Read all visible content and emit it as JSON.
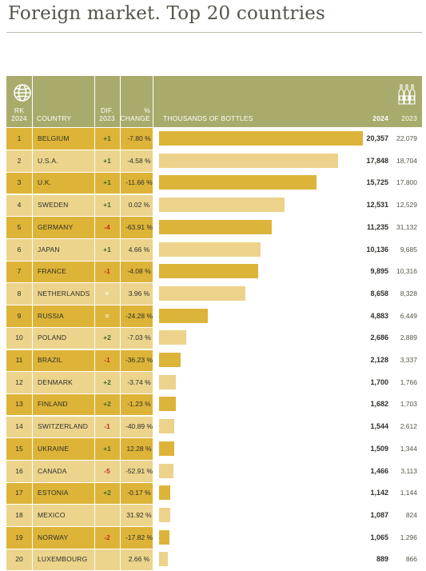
{
  "title": "Foreign market. Top 20 countries",
  "header": {
    "rk": "RK",
    "rk_year": "2024",
    "country": "COUNTRY",
    "dif": "DIF.",
    "dif_year": "2023",
    "pct_symbol": "%",
    "change": "CHANGE",
    "bottles": "THOUSANDS OF BOTTLES",
    "col_2024": "2024",
    "col_2023": "2023"
  },
  "icons": {
    "left": "globe-icon",
    "right": "wine-bottles-icon"
  },
  "colors": {
    "header_band": "#a9ab6c",
    "odd_fill": "#ddb437",
    "even_fill": "#ecd48c",
    "odd_bar": "#ddb43a",
    "even_bar": "#ecd28a",
    "dif_up": "#3a6a2a",
    "dif_down": "#c62828",
    "dif_same": "#ffffff"
  },
  "chart_data": {
    "type": "bar",
    "orientation": "horizontal",
    "title": "Foreign market. Top 20 countries",
    "xlabel": "THOUSANDS OF BOTTLES",
    "categories": [
      "BELGIUM",
      "U.S.A.",
      "U.K.",
      "SWEDEN",
      "GERMANY",
      "JAPAN",
      "FRANCE",
      "NETHERLANDS",
      "RUSSIA",
      "POLAND",
      "BRAZIL",
      "DENMARK",
      "FINLAND",
      "SWITZERLAND",
      "UKRAINE",
      "CANADA",
      "ESTONIA",
      "MEXICO",
      "NORWAY",
      "LUXEMBOURG"
    ],
    "rows": [
      {
        "rank": "1",
        "country": "BELGIUM",
        "dif": "+1",
        "change": "-7.80 %",
        "v2024": 20357,
        "v2024_label": "20,357",
        "v2023_label": "22,079"
      },
      {
        "rank": "2",
        "country": "U.S.A.",
        "dif": "+1",
        "change": "-4.58 %",
        "v2024": 17848,
        "v2024_label": "17,848",
        "v2023_label": "18,704"
      },
      {
        "rank": "3",
        "country": "U.K.",
        "dif": "+1",
        "change": "-11.66 %",
        "v2024": 15725,
        "v2024_label": "15,725",
        "v2023_label": "17,800"
      },
      {
        "rank": "4",
        "country": "SWEDEN",
        "dif": "+1",
        "change": "0.02 %",
        "v2024": 12531,
        "v2024_label": "12,531",
        "v2023_label": "12,529"
      },
      {
        "rank": "5",
        "country": "GERMANY",
        "dif": "-4",
        "change": "-63.91 %",
        "v2024": 11235,
        "v2024_label": "11,235",
        "v2023_label": "31,132"
      },
      {
        "rank": "6",
        "country": "JAPAN",
        "dif": "+1",
        "change": "4.66 %",
        "v2024": 10136,
        "v2024_label": "10,136",
        "v2023_label": "9,685"
      },
      {
        "rank": "7",
        "country": "FRANCE",
        "dif": "-1",
        "change": "-4.08 %",
        "v2024": 9895,
        "v2024_label": "9,895",
        "v2023_label": "10,316"
      },
      {
        "rank": "8",
        "country": "NETHERLANDS",
        "dif": "=",
        "change": "3.96 %",
        "v2024": 8658,
        "v2024_label": "8,658",
        "v2023_label": "8,328"
      },
      {
        "rank": "9",
        "country": "RUSSIA",
        "dif": "=",
        "change": "-24.28 %",
        "v2024": 4883,
        "v2024_label": "4,883",
        "v2023_label": "6,449"
      },
      {
        "rank": "10",
        "country": "POLAND",
        "dif": "+2",
        "change": "-7.03 %",
        "v2024": 2686,
        "v2024_label": "2,686",
        "v2023_label": "2,889"
      },
      {
        "rank": "11",
        "country": "BRAZIL",
        "dif": "-1",
        "change": "-36.23 %",
        "v2024": 2128,
        "v2024_label": "2,128",
        "v2023_label": "3,337"
      },
      {
        "rank": "12",
        "country": "DENMARK",
        "dif": "+2",
        "change": "-3.74 %",
        "v2024": 1700,
        "v2024_label": "1,700",
        "v2023_label": "1,766"
      },
      {
        "rank": "13",
        "country": "FINLAND",
        "dif": "+2",
        "change": "-1.23 %",
        "v2024": 1682,
        "v2024_label": "1,682",
        "v2023_label": "1,703"
      },
      {
        "rank": "14",
        "country": "SWITZERLAND",
        "dif": "-1",
        "change": "-40.89 %",
        "v2024": 1544,
        "v2024_label": "1,544",
        "v2023_label": "2,612"
      },
      {
        "rank": "15",
        "country": "UKRAINE",
        "dif": "+1",
        "change": "12.28 %",
        "v2024": 1509,
        "v2024_label": "1,509",
        "v2023_label": "1,344"
      },
      {
        "rank": "16",
        "country": "CANADA",
        "dif": "-5",
        "change": "-52.91 %",
        "v2024": 1466,
        "v2024_label": "1,466",
        "v2023_label": "3,113"
      },
      {
        "rank": "17",
        "country": "ESTONIA",
        "dif": "+2",
        "change": "-0.17 %",
        "v2024": 1142,
        "v2024_label": "1,142",
        "v2023_label": "1,144"
      },
      {
        "rank": "18",
        "country": "MEXICO",
        "dif": "",
        "change": "31.92 %",
        "v2024": 1087,
        "v2024_label": "1,087",
        "v2023_label": "824"
      },
      {
        "rank": "19",
        "country": "NORWAY",
        "dif": "-2",
        "change": "-17.82 %",
        "v2024": 1065,
        "v2024_label": "1,065",
        "v2023_label": "1,296"
      },
      {
        "rank": "20",
        "country": "LUXEMBOURG",
        "dif": "",
        "change": "2.66 %",
        "v2024": 889,
        "v2024_label": "889",
        "v2023_label": "866"
      }
    ],
    "xlim": [
      0,
      20357
    ],
    "grid": false
  }
}
